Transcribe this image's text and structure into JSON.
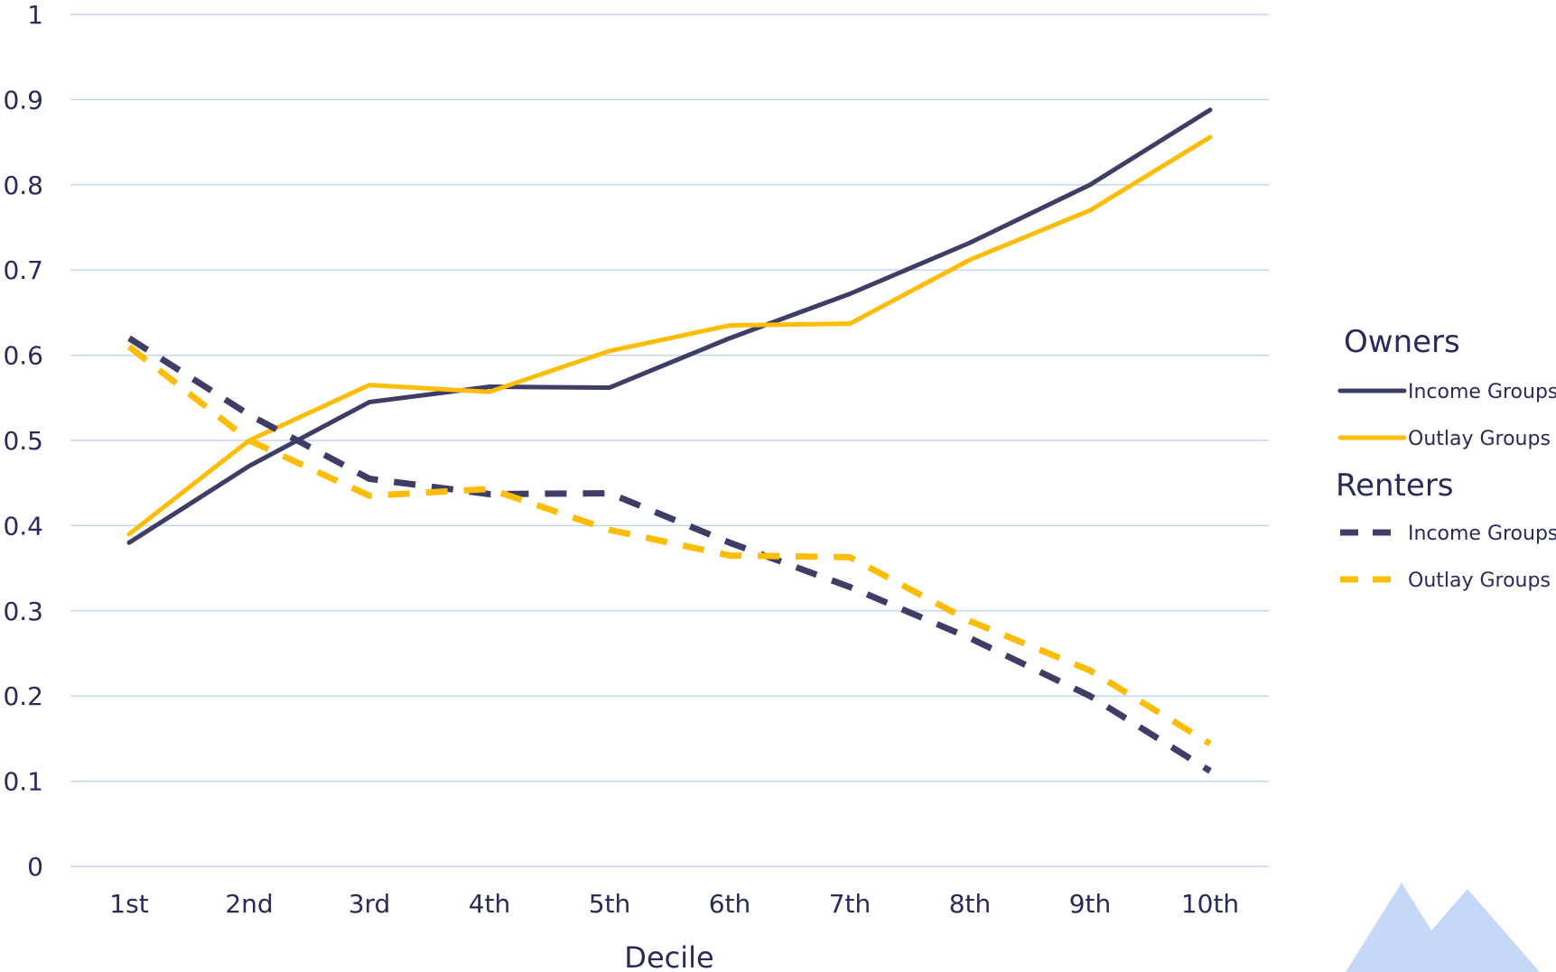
{
  "chart_data": {
    "type": "line",
    "xlabel": "Decile",
    "ylabel": "",
    "title": "",
    "categories": [
      "1st",
      "2nd",
      "3rd",
      "4th",
      "5th",
      "6th",
      "7th",
      "8th",
      "9th",
      "10th"
    ],
    "ylim": [
      0,
      1
    ],
    "yticks": [
      "0",
      "0.1",
      "0.2",
      "0.3",
      "0.4",
      "0.5",
      "0.6",
      "0.7",
      "0.8",
      "0.9",
      "1"
    ],
    "grid": "horizontal",
    "legend_placement": "right",
    "legend_groups": [
      {
        "title": "Owners",
        "series": [
          0,
          1
        ]
      },
      {
        "title": "Renters",
        "series": [
          2,
          3
        ]
      }
    ],
    "series": [
      {
        "name": "Income Groups",
        "group": "Owners",
        "style": "solid",
        "color": "#3d3d66",
        "values": [
          0.38,
          0.47,
          0.545,
          0.563,
          0.562,
          0.62,
          0.672,
          0.732,
          0.8,
          0.888
        ]
      },
      {
        "name": "Outlay Groups",
        "group": "Owners",
        "style": "solid",
        "color": "#fbbd08",
        "values": [
          0.39,
          0.5,
          0.565,
          0.557,
          0.605,
          0.635,
          0.637,
          0.712,
          0.77,
          0.856
        ]
      },
      {
        "name": "Income Groups",
        "group": "Renters",
        "style": "dashed",
        "color": "#3d3d66",
        "values": [
          0.62,
          0.53,
          0.455,
          0.437,
          0.438,
          0.38,
          0.328,
          0.268,
          0.2,
          0.112
        ]
      },
      {
        "name": "Outlay Groups",
        "group": "Renters",
        "style": "dashed",
        "color": "#fbbd08",
        "values": [
          0.61,
          0.5,
          0.435,
          0.443,
          0.395,
          0.365,
          0.363,
          0.288,
          0.23,
          0.144
        ]
      }
    ]
  },
  "colors": {
    "gridline": "#c5d5ee",
    "text": "#2a2a5a",
    "watermark": "#c6d8f7"
  },
  "watermark_icon": "mountain-logo-icon"
}
